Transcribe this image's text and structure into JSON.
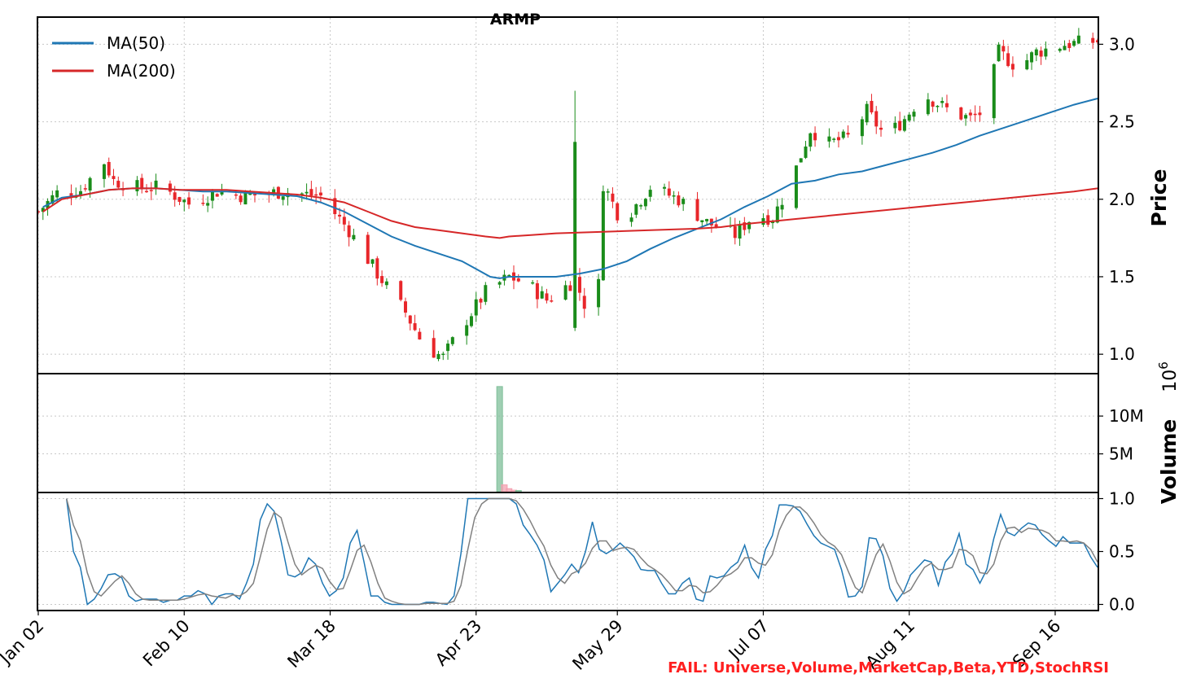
{
  "chart_data": {
    "type": "candlestick",
    "title": "ARMP",
    "price_panel": {
      "ylabel": "Price",
      "ylim": [
        0.88,
        3.17
      ],
      "yticks": [
        1.0,
        1.5,
        2.0,
        2.5,
        3.0
      ],
      "ytick_labels": [
        "1.0",
        "1.5",
        "2.0",
        "2.5",
        "3.0"
      ],
      "legend": {
        "placement": "upper-left",
        "entries": [
          {
            "label": "MA(50)",
            "color": "#1f77b4"
          },
          {
            "label": "MA(200)",
            "color": "#d62728"
          }
        ]
      },
      "up_color": "#1a8c1a",
      "down_color": "#e8262a",
      "ma50": [
        [
          1,
          1.95
        ],
        [
          5,
          2.01
        ],
        [
          10,
          2.03
        ],
        [
          15,
          2.06
        ],
        [
          20,
          2.07
        ],
        [
          25,
          2.07
        ],
        [
          30,
          2.06
        ],
        [
          35,
          2.05
        ],
        [
          40,
          2.05
        ],
        [
          45,
          2.04
        ],
        [
          50,
          2.03
        ],
        [
          55,
          2.02
        ],
        [
          60,
          1.98
        ],
        [
          65,
          1.92
        ],
        [
          70,
          1.84
        ],
        [
          75,
          1.76
        ],
        [
          80,
          1.7
        ],
        [
          85,
          1.65
        ],
        [
          90,
          1.6
        ],
        [
          93,
          1.55
        ],
        [
          96,
          1.5
        ],
        [
          98,
          1.49
        ],
        [
          100,
          1.5
        ],
        [
          105,
          1.5
        ],
        [
          110,
          1.5
        ],
        [
          115,
          1.52
        ],
        [
          120,
          1.55
        ],
        [
          125,
          1.6
        ],
        [
          130,
          1.68
        ],
        [
          135,
          1.75
        ],
        [
          140,
          1.81
        ],
        [
          145,
          1.87
        ],
        [
          150,
          1.95
        ],
        [
          155,
          2.02
        ],
        [
          160,
          2.1
        ],
        [
          165,
          2.12
        ],
        [
          170,
          2.16
        ],
        [
          175,
          2.18
        ],
        [
          180,
          2.22
        ],
        [
          185,
          2.26
        ],
        [
          190,
          2.3
        ],
        [
          195,
          2.35
        ],
        [
          200,
          2.41
        ],
        [
          205,
          2.46
        ],
        [
          210,
          2.51
        ],
        [
          215,
          2.56
        ],
        [
          220,
          2.61
        ],
        [
          225,
          2.65
        ]
      ],
      "ma200": [
        [
          1,
          1.92
        ],
        [
          5,
          2.0
        ],
        [
          10,
          2.03
        ],
        [
          15,
          2.06
        ],
        [
          20,
          2.07
        ],
        [
          25,
          2.07
        ],
        [
          30,
          2.06
        ],
        [
          35,
          2.06
        ],
        [
          40,
          2.06
        ],
        [
          45,
          2.05
        ],
        [
          50,
          2.04
        ],
        [
          55,
          2.03
        ],
        [
          60,
          2.01
        ],
        [
          65,
          1.98
        ],
        [
          70,
          1.92
        ],
        [
          75,
          1.86
        ],
        [
          80,
          1.82
        ],
        [
          85,
          1.8
        ],
        [
          90,
          1.78
        ],
        [
          95,
          1.76
        ],
        [
          98,
          1.75
        ],
        [
          100,
          1.76
        ],
        [
          105,
          1.77
        ],
        [
          110,
          1.78
        ],
        [
          120,
          1.79
        ],
        [
          130,
          1.8
        ],
        [
          140,
          1.81
        ],
        [
          145,
          1.82
        ],
        [
          150,
          1.84
        ],
        [
          160,
          1.87
        ],
        [
          170,
          1.9
        ],
        [
          180,
          1.93
        ],
        [
          190,
          1.96
        ],
        [
          200,
          1.99
        ],
        [
          210,
          2.02
        ],
        [
          220,
          2.05
        ],
        [
          225,
          2.07
        ]
      ]
    },
    "volume_panel": {
      "ylabel": "Volume",
      "exponent_label": "10^6",
      "ylim": [
        0,
        15.5
      ],
      "yticks": [
        5,
        10
      ],
      "ytick_labels": [
        "5M",
        "10M"
      ],
      "bars": [
        {
          "x": 98,
          "value": 13.9,
          "direction": "up"
        },
        {
          "x": 99,
          "value": 0.9,
          "direction": "down"
        },
        {
          "x": 100,
          "value": 0.4,
          "direction": "down"
        },
        {
          "x": 101,
          "value": 0.2,
          "direction": "down"
        },
        {
          "x": 102,
          "value": 0.15,
          "direction": "up"
        }
      ]
    },
    "stochrsi_panel": {
      "ylim": [
        -0.05,
        1.05
      ],
      "yticks": [
        0.0,
        0.5,
        1.0
      ],
      "ytick_labels": [
        "0.0",
        "0.5",
        "1.0"
      ],
      "k_color": "#1f77b4",
      "d_color": "#808080",
      "k": [
        1.0,
        0.5,
        0.35,
        0.0,
        0.05,
        0.15,
        0.28,
        0.29,
        0.25,
        0.08,
        0.03,
        0.05,
        0.05,
        0.05,
        0.02,
        0.04,
        0.04,
        0.08,
        0.08,
        0.13,
        0.1,
        0.0,
        0.08,
        0.1,
        0.1,
        0.05,
        0.2,
        0.38,
        0.8,
        0.95,
        0.88,
        0.6,
        0.28,
        0.26,
        0.3,
        0.44,
        0.38,
        0.2,
        0.08,
        0.13,
        0.25,
        0.58,
        0.7,
        0.4,
        0.08,
        0.08,
        0.02,
        0.0,
        0.0,
        0.0,
        0.0,
        0.0,
        0.02,
        0.02,
        0.01,
        0.0,
        0.08,
        0.48,
        1.0,
        1.0,
        1.0,
        1.0,
        1.0,
        1.0,
        1.0,
        0.95,
        0.75,
        0.66,
        0.56,
        0.42,
        0.12,
        0.2,
        0.28,
        0.38,
        0.3,
        0.5,
        0.78,
        0.52,
        0.48,
        0.52,
        0.58,
        0.52,
        0.45,
        0.33,
        0.32,
        0.32,
        0.2,
        0.1,
        0.1,
        0.2,
        0.25,
        0.05,
        0.03,
        0.27,
        0.25,
        0.27,
        0.35,
        0.4,
        0.56,
        0.35,
        0.25,
        0.52,
        0.65,
        0.94,
        0.94,
        0.93,
        0.88,
        0.76,
        0.65,
        0.58,
        0.55,
        0.52,
        0.33,
        0.07,
        0.08,
        0.17,
        0.63,
        0.62,
        0.46,
        0.15,
        0.03,
        0.12,
        0.28,
        0.35,
        0.42,
        0.4,
        0.18,
        0.4,
        0.48,
        0.67,
        0.38,
        0.33,
        0.2,
        0.33,
        0.62,
        0.85,
        0.68,
        0.65,
        0.72,
        0.77,
        0.75,
        0.66,
        0.6,
        0.55,
        0.64,
        0.58,
        0.58,
        0.58,
        0.45,
        0.35
      ],
      "d": [
        1.0,
        0.75,
        0.6,
        0.3,
        0.12,
        0.08,
        0.15,
        0.22,
        0.27,
        0.2,
        0.1,
        0.05,
        0.04,
        0.04,
        0.04,
        0.04,
        0.04,
        0.05,
        0.07,
        0.09,
        0.1,
        0.08,
        0.07,
        0.06,
        0.09,
        0.08,
        0.12,
        0.2,
        0.45,
        0.71,
        0.87,
        0.82,
        0.59,
        0.38,
        0.28,
        0.33,
        0.37,
        0.34,
        0.22,
        0.14,
        0.15,
        0.32,
        0.51,
        0.56,
        0.4,
        0.2,
        0.06,
        0.03,
        0.01,
        0.0,
        0.0,
        0.0,
        0.01,
        0.01,
        0.01,
        0.01,
        0.03,
        0.18,
        0.52,
        0.82,
        0.95,
        1.0,
        1.0,
        1.0,
        1.0,
        0.98,
        0.9,
        0.79,
        0.66,
        0.55,
        0.37,
        0.25,
        0.2,
        0.29,
        0.32,
        0.39,
        0.53,
        0.6,
        0.6,
        0.51,
        0.53,
        0.54,
        0.52,
        0.44,
        0.37,
        0.33,
        0.28,
        0.21,
        0.13,
        0.13,
        0.18,
        0.17,
        0.11,
        0.12,
        0.18,
        0.26,
        0.29,
        0.34,
        0.44,
        0.44,
        0.39,
        0.37,
        0.47,
        0.7,
        0.84,
        0.92,
        0.92,
        0.86,
        0.77,
        0.66,
        0.59,
        0.55,
        0.47,
        0.31,
        0.16,
        0.11,
        0.29,
        0.47,
        0.57,
        0.41,
        0.21,
        0.1,
        0.14,
        0.25,
        0.35,
        0.39,
        0.33,
        0.33,
        0.35,
        0.52,
        0.51,
        0.46,
        0.3,
        0.29,
        0.38,
        0.6,
        0.72,
        0.73,
        0.68,
        0.72,
        0.71,
        0.7,
        0.67,
        0.6,
        0.6,
        0.59,
        0.6,
        0.58,
        0.52,
        0.4
      ]
    },
    "x_axis": {
      "n_days": 226,
      "ticks": [
        {
          "x": 0,
          "label": "Jan 02"
        },
        {
          "x": 31,
          "label": "Feb 10"
        },
        {
          "x": 62,
          "label": "Mar 18"
        },
        {
          "x": 93,
          "label": "Apr 23"
        },
        {
          "x": 123,
          "label": "May 29"
        },
        {
          "x": 154,
          "label": "Jul 07"
        },
        {
          "x": 185,
          "label": "Aug 11"
        },
        {
          "x": 216,
          "label": "Sep 16"
        }
      ]
    },
    "annotation": "FAIL: Universe,Volume,MarketCap,Beta,YTD,StochRSI",
    "annotation_color": "#ff2020"
  }
}
